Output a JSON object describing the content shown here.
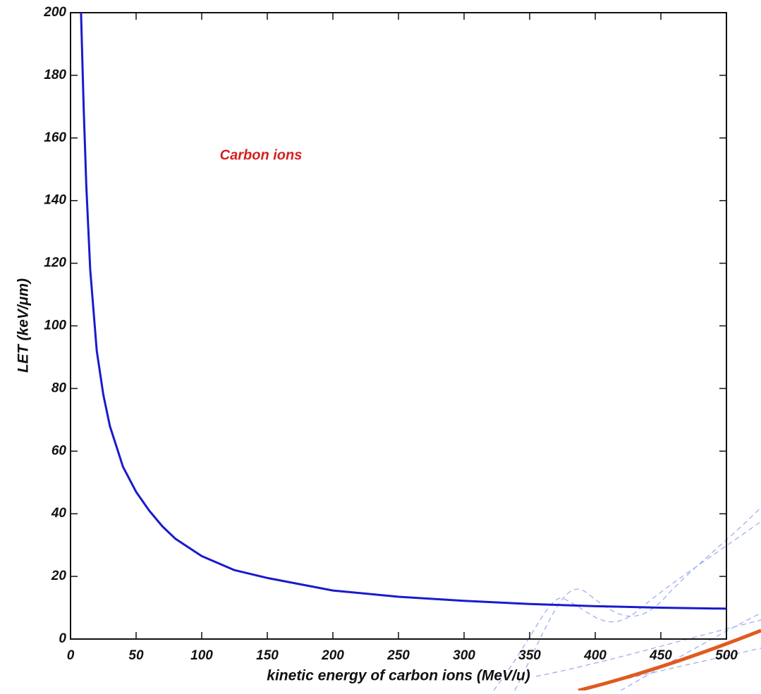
{
  "chart_data": {
    "type": "line",
    "annotation": "Carbon ions",
    "x_label": "kinetic energy of carbon ions (MeV/u)",
    "y_label": "LET (keV/μm)",
    "xlim": [
      0,
      500
    ],
    "xticks": [
      0,
      50,
      100,
      150,
      200,
      250,
      300,
      350,
      400,
      450,
      500
    ],
    "ylim": [
      0,
      200
    ],
    "yticks": [
      0,
      20,
      40,
      60,
      80,
      100,
      120,
      140,
      160,
      180,
      200
    ],
    "series": [
      {
        "color": "#1a1acc",
        "x": [
          8,
          9,
          10,
          12,
          15,
          20,
          25,
          30,
          40,
          50,
          60,
          70,
          80,
          100,
          125,
          150,
          200,
          250,
          300,
          350,
          400,
          450,
          500
        ],
        "values": [
          200,
          185,
          170,
          145,
          118,
          92,
          78,
          68,
          55,
          47,
          41,
          36,
          32,
          26.5,
          22,
          19.5,
          15.5,
          13.5,
          12.2,
          11.2,
          10.5,
          10,
          9.7
        ]
      }
    ]
  }
}
